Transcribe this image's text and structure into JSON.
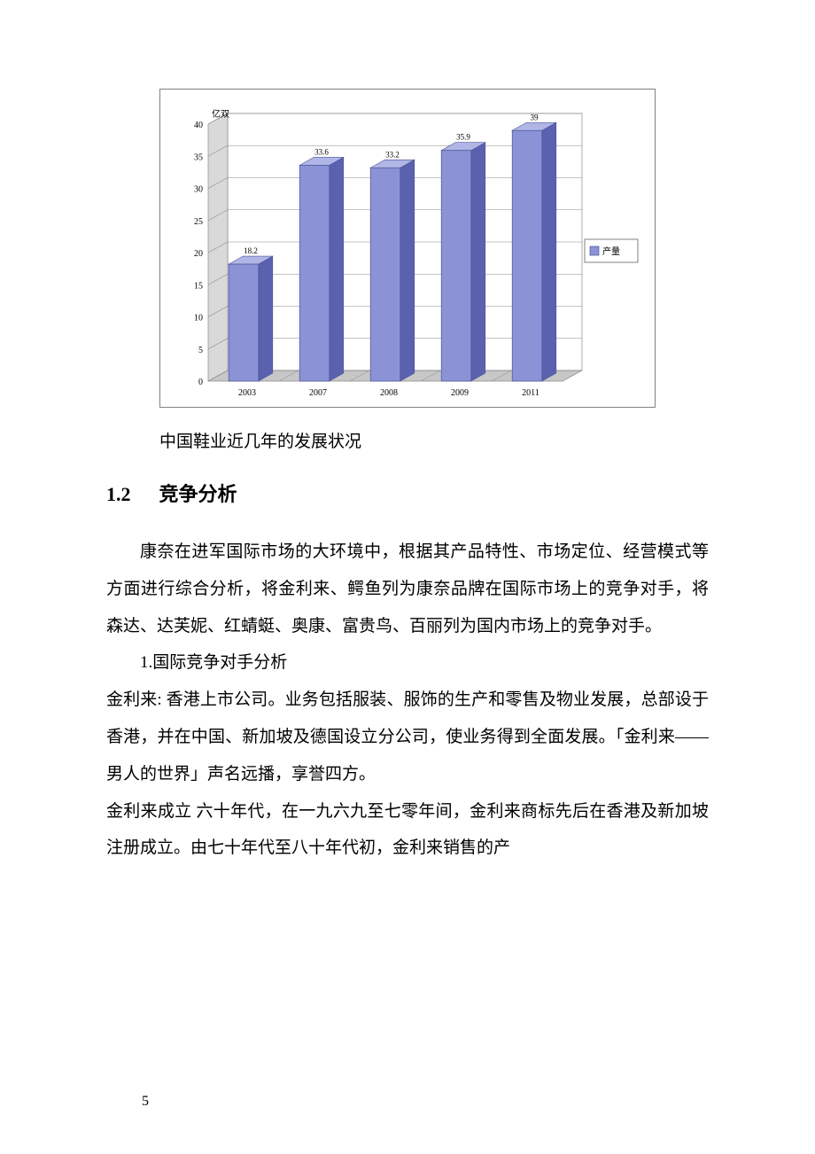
{
  "chart": {
    "type": "bar3d",
    "unit": "亿双",
    "categories": [
      "2003",
      "2007",
      "2008",
      "2009",
      "2011"
    ],
    "values": [
      18.2,
      33.6,
      33.2,
      35.9,
      39
    ],
    "value_labels": [
      "18.2",
      "33.6",
      "33.2",
      "35.9",
      "39"
    ],
    "bar_fill": "#8b92d6",
    "bar_side": "#5a62b0",
    "bar_top": "#b0b6e6",
    "ylim": [
      0,
      40
    ],
    "ytick_step": 5,
    "yticks": [
      0,
      5,
      10,
      15,
      20,
      25,
      30,
      35,
      40
    ],
    "plot_bg": "#ffffff",
    "border_color": "#808080",
    "grid_color": "#8a8a8a",
    "wall_side_color": "#d9d9d9",
    "wall_floor_color": "#c7c7c7",
    "axis_font_size": 10,
    "label_font_size": 9,
    "legend": {
      "label": "产量",
      "swatch": "#8b92d6",
      "border": "#808080",
      "font_size": 10
    }
  },
  "caption": "中国鞋业近几年的发展状况",
  "section": {
    "number": "1.2",
    "title": "竞争分析"
  },
  "paragraphs": {
    "p1": "康奈在进军国际市场的大环境中，根据其产品特性、市场定位、经营模式等方面进行综合分析，将金利来、鳄鱼列为康奈品牌在国际市场上的竞争对手，将森达、达芙妮、红蜻蜓、奥康、富贵鸟、百丽列为国内市场上的竞争对手。",
    "p2": "1.国际竞争对手分析",
    "p3": "金利来: 香港上市公司。业务包括服装、服饰的生产和零售及物业发展，总部设于香港，并在中国、新加坡及德国设立分公司，使业务得到全面发展。「金利来——男人的世界」声名远播，享誉四方。",
    "p4": "金利来成立 六十年代，在一九六九至七零年间，金利来商标先后在香港及新加坡注册成立。由七十年代至八十年代初，金利来销售的产"
  },
  "page_number": "5"
}
